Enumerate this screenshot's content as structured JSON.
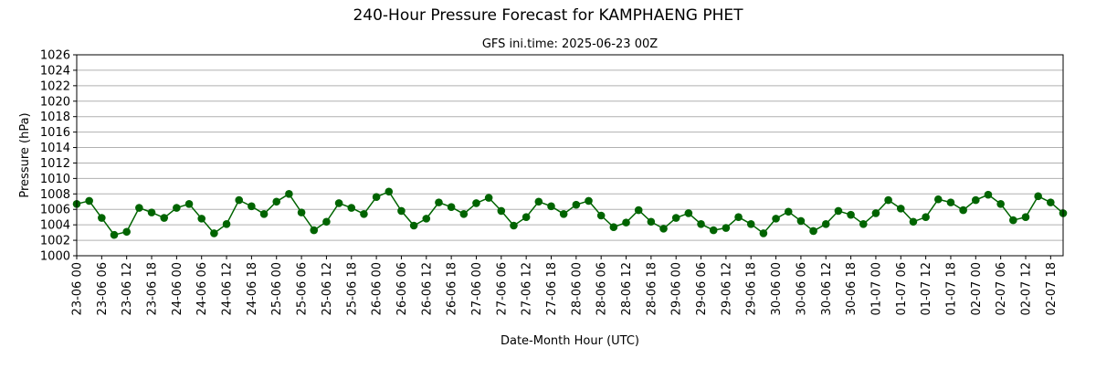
{
  "chart_data": {
    "type": "line",
    "title": "240-Hour Pressure Forecast for KAMPHAENG PHET",
    "subtitle": "GFS ini.time: 2025-06-23 00Z",
    "xlabel": "Date-Month Hour (UTC)",
    "ylabel": "Pressure (hPa)",
    "ylim": [
      1000,
      1026
    ],
    "yticks": [
      1000,
      1002,
      1004,
      1006,
      1008,
      1010,
      1012,
      1014,
      1016,
      1018,
      1020,
      1022,
      1024,
      1026
    ],
    "grid": "horizontal",
    "line_color": "#006400",
    "x_tick_labels": [
      "23-06 00",
      "23-06 06",
      "23-06 12",
      "23-06 18",
      "24-06 00",
      "24-06 06",
      "24-06 12",
      "24-06 18",
      "25-06 00",
      "25-06 06",
      "25-06 12",
      "25-06 18",
      "26-06 00",
      "26-06 06",
      "26-06 12",
      "26-06 18",
      "27-06 00",
      "27-06 06",
      "27-06 12",
      "27-06 18",
      "28-06 00",
      "28-06 06",
      "28-06 12",
      "28-06 18",
      "29-06 00",
      "29-06 06",
      "29-06 12",
      "29-06 18",
      "30-06 00",
      "30-06 06",
      "30-06 12",
      "30-06 18",
      "01-07 00",
      "01-07 06",
      "01-07 12",
      "01-07 18",
      "02-07 00",
      "02-07 06",
      "02-07 12",
      "02-07 18"
    ],
    "series": [
      {
        "values": [
          1006.7,
          1007.1,
          1004.9,
          1002.7,
          1003.1,
          1006.2,
          1005.6,
          1004.9,
          1006.2,
          1006.7,
          1004.8,
          1002.9,
          1004.1,
          1007.2,
          1006.4,
          1005.4,
          1007.0,
          1008.0,
          1005.6,
          1003.3,
          1004.4,
          1006.8,
          1006.2,
          1005.4,
          1007.6,
          1008.3,
          1005.8,
          1003.9,
          1004.8,
          1006.9,
          1006.3,
          1005.4,
          1006.8,
          1007.5,
          1005.8,
          1003.9,
          1005.0,
          1007.0,
          1006.4,
          1005.4,
          1006.6,
          1007.1,
          1005.2,
          1003.7,
          1004.3,
          1005.9,
          1004.4,
          1003.5,
          1004.9,
          1005.5,
          1004.1,
          1003.3,
          1003.6,
          1005.0,
          1004.1,
          1002.9,
          1004.8,
          1005.7,
          1004.5,
          1003.2,
          1004.1,
          1005.8,
          1005.3,
          1004.1,
          1005.5,
          1007.2,
          1006.1,
          1004.4,
          1005.0,
          1007.3,
          1006.9,
          1005.9,
          1007.2,
          1007.9,
          1006.7,
          1004.6,
          1005.0,
          1007.7,
          1006.9,
          1005.5
        ]
      }
    ]
  }
}
